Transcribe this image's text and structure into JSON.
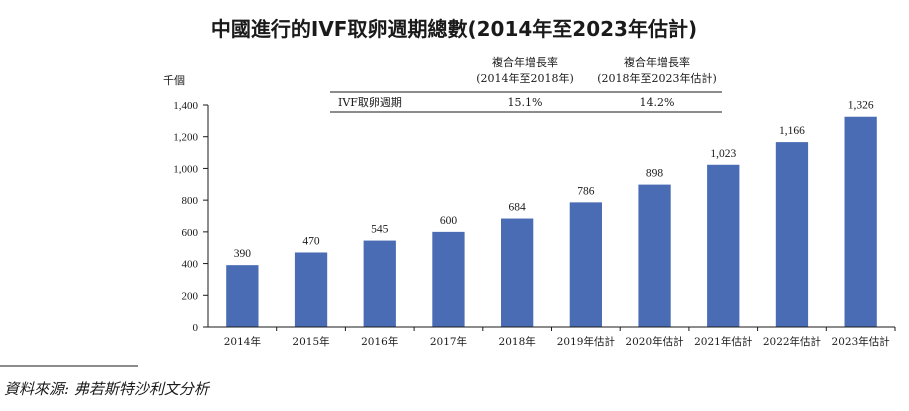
{
  "chart_data": {
    "type": "bar",
    "title": "中國進行的IVF取卵週期總數(2014年至2023年估計)",
    "unit_label": "千個",
    "categories": [
      "2014年",
      "2015年",
      "2016年",
      "2017年",
      "2018年",
      "2019年估計",
      "2020年估計",
      "2021年估計",
      "2022年估計",
      "2023年估計"
    ],
    "values": [
      390,
      470,
      545,
      600,
      684,
      786,
      898,
      1023,
      1166,
      1326
    ],
    "value_labels": [
      "390",
      "470",
      "545",
      "600",
      "684",
      "786",
      "898",
      "1,023",
      "1,166",
      "1,326"
    ],
    "ylim": [
      0,
      1400
    ],
    "yticks": [
      0,
      200,
      400,
      600,
      800,
      1000,
      1200,
      1400
    ],
    "ytick_labels": [
      "0",
      "200",
      "400",
      "600",
      "800",
      "1,000",
      "1,200",
      "1,400"
    ],
    "bar_color": "#4a6cb5",
    "grid": false,
    "legend": "none"
  },
  "cagr_table": {
    "col1_header_line1": "複合年增長率",
    "col1_header_line2": "(2014年至2018年)",
    "col2_header_line1": "複合年增長率",
    "col2_header_line2": "(2018年至2023年估計)",
    "row_label": "IVF取卵週期",
    "col1_value": "15.1%",
    "col2_value": "14.2%"
  },
  "source": "資料來源: 弗若斯特沙利文分析"
}
